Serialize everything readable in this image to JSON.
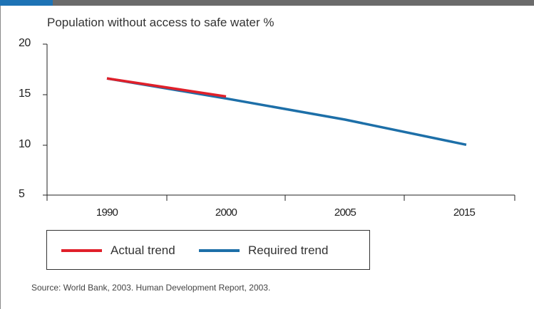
{
  "chart_data": {
    "type": "line",
    "title": "Population without access to safe water %",
    "categories": [
      "1990",
      "2000",
      "2005",
      "2015"
    ],
    "y_ticks": [
      "20",
      "15",
      "10",
      "5"
    ],
    "ylim": [
      5,
      20
    ],
    "grid": false,
    "legend_placement": "bottom-left",
    "series": [
      {
        "name": "Actual trend",
        "color": "#e0202a",
        "values": [
          16.6,
          14.8,
          null,
          null
        ]
      },
      {
        "name": "Required trend",
        "color": "#1d6fa8",
        "values": [
          16.6,
          14.6,
          12.5,
          10.0
        ]
      }
    ],
    "source": "Source: World Bank, 2003. Human Development Report, 2003."
  }
}
